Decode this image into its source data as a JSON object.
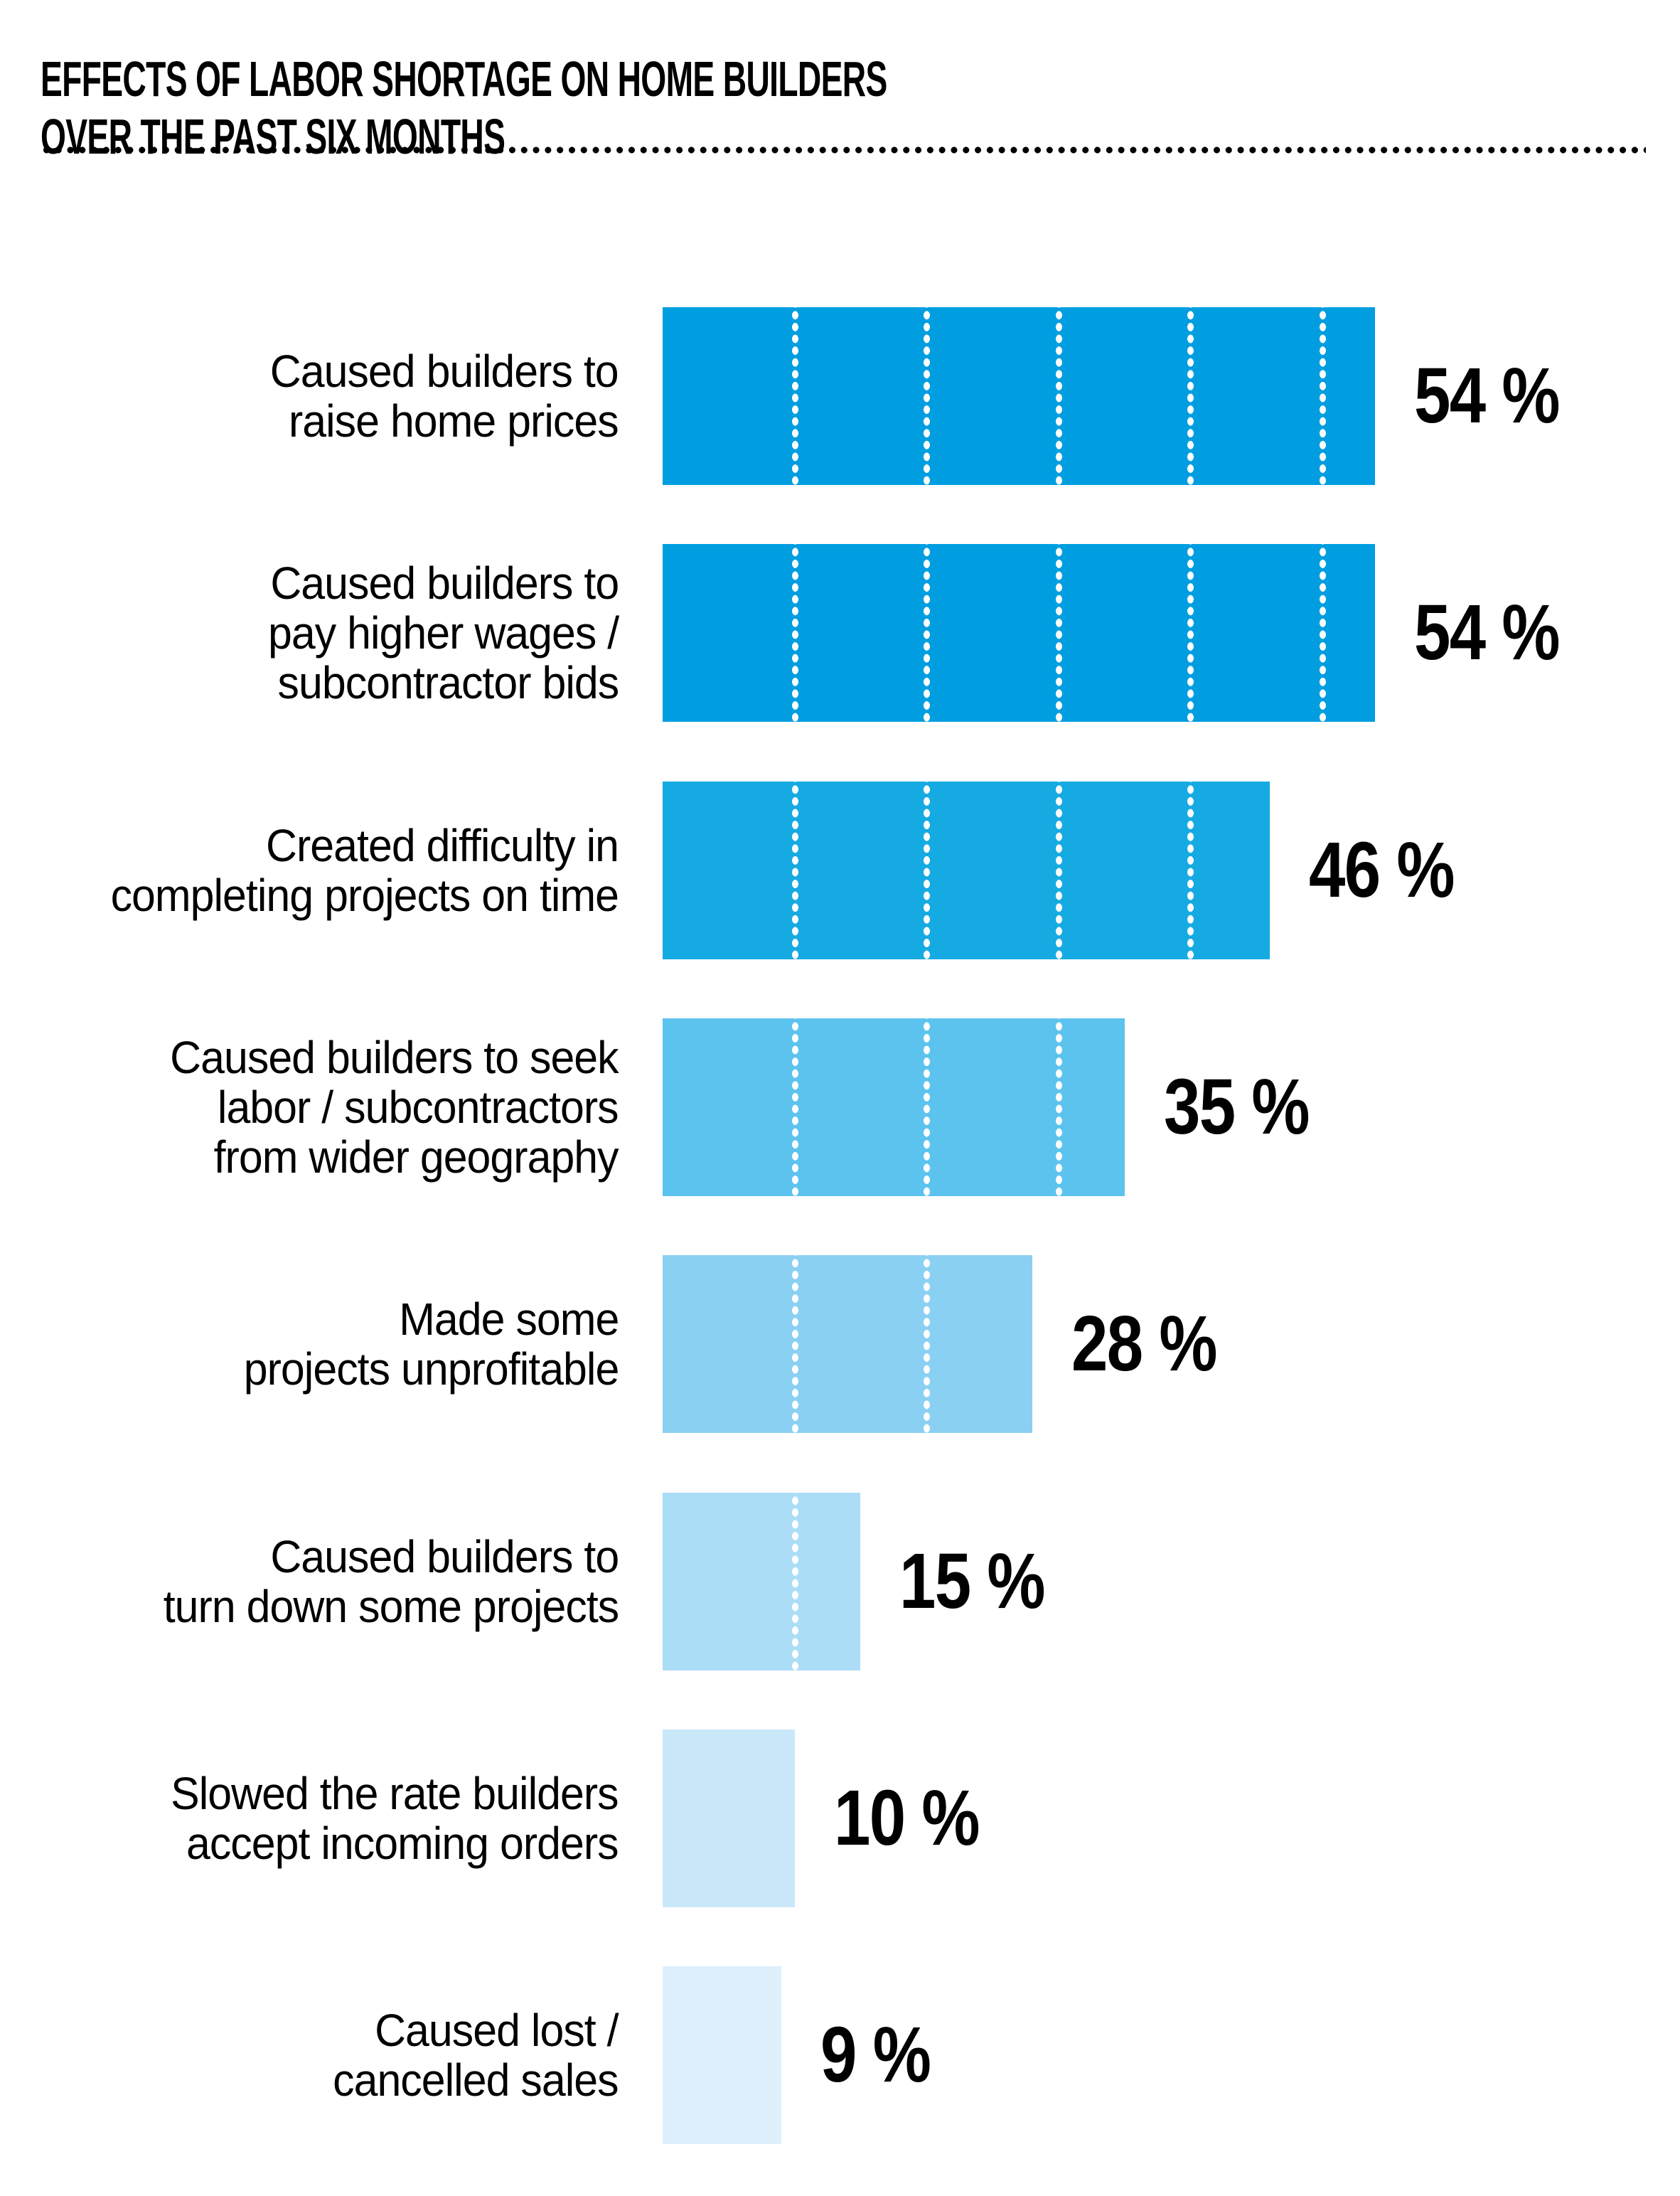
{
  "page": {
    "background_color": "#ffffff",
    "text_color": "#000000"
  },
  "title": {
    "line1": "EFFECTS OF LABOR SHORTAGE ON HOME BUILDERS",
    "line2": "OVER THE PAST SIX MONTHS"
  },
  "divider": {
    "style": "row of black round dots under the title, full content width"
  },
  "chart_data": {
    "type": "bar",
    "orientation": "horizontal",
    "title": "EFFECTS OF LABOR SHORTAGE ON HOME BUILDERS OVER THE PAST SIX MONTHS",
    "unit": "percent",
    "axes_visible": false,
    "legend": "none",
    "xlim": [
      0,
      60
    ],
    "gridline_step": 10,
    "gridline_style": "white dotted vertical lines inside bars at every 10%",
    "categories": [
      {
        "lines": [
          "Caused builders to",
          "raise home prices"
        ]
      },
      {
        "lines": [
          "Caused builders to",
          "pay higher wages /",
          "subcontractor bids"
        ]
      },
      {
        "lines": [
          "Created difficulty in",
          "completing projects on time"
        ]
      },
      {
        "lines": [
          "Caused builders to seek",
          "labor / subcontractors",
          "from wider geography"
        ]
      },
      {
        "lines": [
          "Made some",
          "projects unprofitable"
        ]
      },
      {
        "lines": [
          "Caused builders to",
          "turn down some projects"
        ]
      },
      {
        "lines": [
          "Slowed the rate builders",
          "accept incoming orders"
        ]
      },
      {
        "lines": [
          "Caused lost /",
          "cancelled sales"
        ]
      }
    ],
    "values": [
      54,
      54,
      46,
      35,
      28,
      15,
      10,
      9
    ],
    "value_labels": [
      "54 %",
      "54 %",
      "46 %",
      "35 %",
      "28 %",
      "15 %",
      "10 %",
      "9 %"
    ],
    "bar_colors": [
      "#009ee0",
      "#009ee0",
      "#16aae3",
      "#5cc3ef",
      "#8ad0f3",
      "#abddf7",
      "#cae8fa",
      "#def0fc"
    ]
  }
}
